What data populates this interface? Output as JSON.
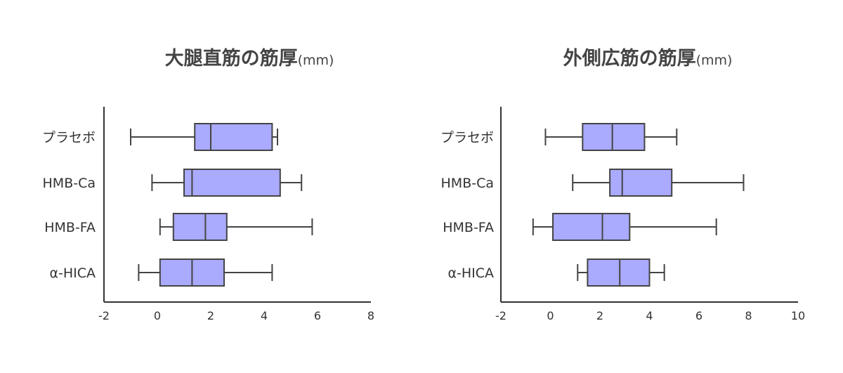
{
  "chart_data": [
    {
      "type": "boxplot",
      "orientation": "horizontal",
      "title": "大腿直筋の筋厚",
      "title_unit": "(mm)",
      "categories": [
        "プラセボ",
        "HMB-Ca",
        "HMB-FA",
        "α-HICA"
      ],
      "boxes": [
        {
          "category": "プラセボ",
          "whisker_low": -1.0,
          "q1": 1.4,
          "median": 2.0,
          "q3": 4.3,
          "whisker_high": 4.5
        },
        {
          "category": "HMB-Ca",
          "whisker_low": -0.2,
          "q1": 1.0,
          "median": 1.3,
          "q3": 4.6,
          "whisker_high": 5.4
        },
        {
          "category": "HMB-FA",
          "whisker_low": 0.1,
          "q1": 0.6,
          "median": 1.8,
          "q3": 2.6,
          "whisker_high": 5.8
        },
        {
          "category": "α-HICA",
          "whisker_low": -0.7,
          "q1": 0.1,
          "median": 1.3,
          "q3": 2.5,
          "whisker_high": 4.3
        }
      ],
      "xlim": [
        -2,
        8
      ],
      "xticks": [
        "-2",
        "0",
        "2",
        "4",
        "6",
        "8"
      ],
      "xtick_values": [
        -2,
        0,
        2,
        4,
        6,
        8
      ]
    },
    {
      "type": "boxplot",
      "orientation": "horizontal",
      "title": "外側広筋の筋厚",
      "title_unit": "(mm)",
      "categories": [
        "プラセボ",
        "HMB-Ca",
        "HMB-FA",
        "α-HICA"
      ],
      "boxes": [
        {
          "category": "プラセボ",
          "whisker_low": -0.2,
          "q1": 1.3,
          "median": 2.5,
          "q3": 3.8,
          "whisker_high": 5.1
        },
        {
          "category": "HMB-Ca",
          "whisker_low": 0.9,
          "q1": 2.4,
          "median": 2.9,
          "q3": 4.9,
          "whisker_high": 7.8
        },
        {
          "category": "HMB-FA",
          "whisker_low": -0.7,
          "q1": 0.1,
          "median": 2.1,
          "q3": 3.2,
          "whisker_high": 6.7
        },
        {
          "category": "α-HICA",
          "whisker_low": 1.1,
          "q1": 1.5,
          "median": 2.8,
          "q3": 4.0,
          "whisker_high": 4.6
        }
      ],
      "xlim": [
        -2,
        10
      ],
      "xticks": [
        "-2",
        "0",
        "2",
        "4",
        "6",
        "8",
        "10"
      ],
      "xtick_values": [
        -2,
        0,
        2,
        4,
        6,
        8,
        10
      ]
    }
  ],
  "colors": {
    "box_fill": "#aaaaff",
    "box_stroke": "#444444",
    "axis": "#333333",
    "text": "#333333",
    "title": "#444444"
  }
}
